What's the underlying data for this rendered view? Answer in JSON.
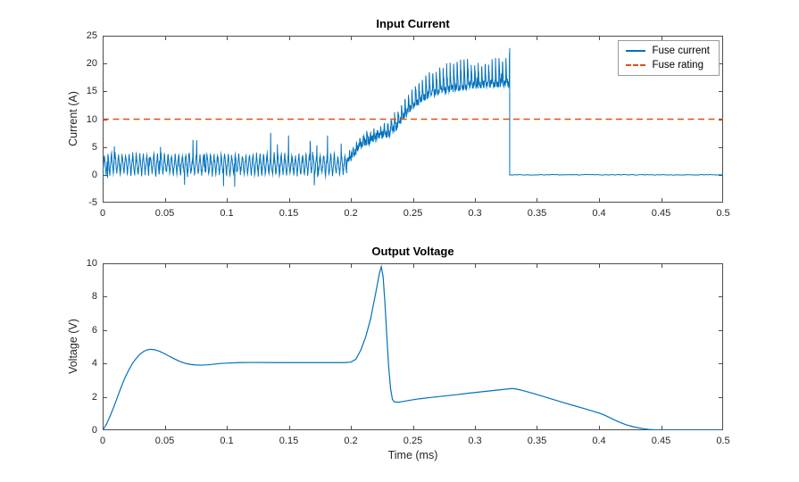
{
  "chart_data": [
    {
      "type": "line",
      "title": "Input Current",
      "xlabel": "",
      "ylabel": "Current (A)",
      "xlim": [
        0,
        0.5
      ],
      "ylim": [
        -5,
        25
      ],
      "xtick_values": [
        0,
        0.05,
        0.1,
        0.15,
        0.2,
        0.25,
        0.3,
        0.35,
        0.4,
        0.45,
        0.5
      ],
      "xtick_labels": [
        "0",
        "0.05",
        "0.1",
        "0.15",
        "0.2",
        "0.25",
        "0.3",
        "0.35",
        "0.4",
        "0.45",
        "0.5"
      ],
      "ytick_values": [
        -5,
        0,
        5,
        10,
        15,
        20,
        25
      ],
      "ytick_labels": [
        "-5",
        "0",
        "5",
        "10",
        "15",
        "20",
        "25"
      ],
      "grid": false,
      "axis_color": "#4d4d4d",
      "legend": {
        "position": "top-right",
        "entries": [
          "Fuse current",
          "Fuse rating"
        ]
      },
      "series": [
        {
          "name": "Fuse current",
          "color": "#0072BD",
          "line_style": "solid",
          "line_width": 1,
          "synthesis": {
            "seed": 7,
            "sample_dt": 0.0002,
            "switch_end": 0.197,
            "switch_period": 0.00285,
            "switch_low": 0.0,
            "switch_high": 3.7,
            "switch_noise": 0.9,
            "spike_up_prob": 0.02,
            "spike_up_max": 2.6,
            "spike_down_prob": 0.012,
            "spike_down_max": 1.8,
            "ramp_period": 0.0028,
            "ramp_noise": 1.4,
            "ramp_mean": [
              [
                0.197,
                3.0
              ],
              [
                0.202,
                4.5
              ],
              [
                0.207,
                6.0
              ],
              [
                0.212,
                6.6
              ],
              [
                0.217,
                7.2
              ],
              [
                0.222,
                7.8
              ],
              [
                0.23,
                8.2
              ],
              [
                0.237,
                9.5
              ],
              [
                0.243,
                11.5
              ],
              [
                0.25,
                13.2
              ],
              [
                0.258,
                14.6
              ],
              [
                0.266,
                15.4
              ],
              [
                0.275,
                16.0
              ],
              [
                0.285,
                16.5
              ],
              [
                0.295,
                16.8
              ],
              [
                0.305,
                17.0
              ],
              [
                0.315,
                17.2
              ],
              [
                0.328,
                17.4
              ]
            ],
            "ramp_amp": [
              [
                0.197,
                1.2
              ],
              [
                0.22,
                1.5
              ],
              [
                0.24,
                2.5
              ],
              [
                0.26,
                3.5
              ],
              [
                0.28,
                4.2
              ],
              [
                0.3,
                4.8
              ],
              [
                0.315,
                5.2
              ],
              [
                0.328,
                5.8
              ]
            ],
            "peak_before_drop": 22.8,
            "t_drop": 0.328,
            "after_level": 0.0,
            "after_noise": 0.12,
            "t_end": 0.5,
            "y_clamp": 23.5
          }
        },
        {
          "name": "Fuse rating",
          "color": "#D95319",
          "line_style": "dashed",
          "line_width": 1.5,
          "constant": 10
        }
      ]
    },
    {
      "type": "line",
      "title": "Output Voltage",
      "xlabel": "Time (ms)",
      "ylabel": "Voltage (V)",
      "xlim": [
        0,
        0.5
      ],
      "ylim": [
        0,
        10
      ],
      "xtick_values": [
        0,
        0.05,
        0.1,
        0.15,
        0.2,
        0.25,
        0.3,
        0.35,
        0.4,
        0.45,
        0.5
      ],
      "xtick_labels": [
        "0",
        "0.05",
        "0.1",
        "0.15",
        "0.2",
        "0.25",
        "0.3",
        "0.35",
        "0.4",
        "0.45",
        "0.5"
      ],
      "ytick_values": [
        0,
        2,
        4,
        6,
        8,
        10
      ],
      "ytick_labels": [
        "0",
        "2",
        "4",
        "6",
        "8",
        "10"
      ],
      "grid": false,
      "axis_color": "#4d4d4d",
      "legend": null,
      "series": [
        {
          "name": "Output voltage",
          "color": "#0072BD",
          "line_style": "solid",
          "line_width": 1.2,
          "points": [
            [
              0,
              0
            ],
            [
              0.003,
              0.35
            ],
            [
              0.006,
              0.85
            ],
            [
              0.009,
              1.4
            ],
            [
              0.012,
              2.0
            ],
            [
              0.015,
              2.6
            ],
            [
              0.018,
              3.15
            ],
            [
              0.021,
              3.6
            ],
            [
              0.024,
              4.0
            ],
            [
              0.027,
              4.3
            ],
            [
              0.03,
              4.55
            ],
            [
              0.033,
              4.72
            ],
            [
              0.036,
              4.82
            ],
            [
              0.039,
              4.85
            ],
            [
              0.042,
              4.82
            ],
            [
              0.046,
              4.72
            ],
            [
              0.05,
              4.58
            ],
            [
              0.054,
              4.42
            ],
            [
              0.058,
              4.27
            ],
            [
              0.062,
              4.13
            ],
            [
              0.066,
              4.02
            ],
            [
              0.07,
              3.95
            ],
            [
              0.075,
              3.91
            ],
            [
              0.08,
              3.9
            ],
            [
              0.085,
              3.92
            ],
            [
              0.09,
              3.96
            ],
            [
              0.095,
              4.0
            ],
            [
              0.1,
              4.02
            ],
            [
              0.11,
              4.05
            ],
            [
              0.12,
              4.06
            ],
            [
              0.14,
              4.05
            ],
            [
              0.16,
              4.05
            ],
            [
              0.18,
              4.05
            ],
            [
              0.195,
              4.05
            ],
            [
              0.2,
              4.08
            ],
            [
              0.204,
              4.25
            ],
            [
              0.208,
              4.8
            ],
            [
              0.212,
              5.6
            ],
            [
              0.216,
              6.7
            ],
            [
              0.22,
              8.2
            ],
            [
              0.223,
              9.4
            ],
            [
              0.2245,
              9.8
            ],
            [
              0.226,
              9.2
            ],
            [
              0.2275,
              7.6
            ],
            [
              0.229,
              5.6
            ],
            [
              0.2305,
              3.8
            ],
            [
              0.232,
              2.5
            ],
            [
              0.2335,
              1.85
            ],
            [
              0.235,
              1.7
            ],
            [
              0.238,
              1.68
            ],
            [
              0.242,
              1.72
            ],
            [
              0.248,
              1.8
            ],
            [
              0.255,
              1.88
            ],
            [
              0.265,
              1.97
            ],
            [
              0.275,
              2.05
            ],
            [
              0.285,
              2.13
            ],
            [
              0.295,
              2.22
            ],
            [
              0.305,
              2.3
            ],
            [
              0.315,
              2.38
            ],
            [
              0.325,
              2.46
            ],
            [
              0.33,
              2.5
            ],
            [
              0.334,
              2.46
            ],
            [
              0.34,
              2.35
            ],
            [
              0.348,
              2.18
            ],
            [
              0.356,
              2.0
            ],
            [
              0.364,
              1.82
            ],
            [
              0.372,
              1.64
            ],
            [
              0.38,
              1.47
            ],
            [
              0.388,
              1.3
            ],
            [
              0.396,
              1.12
            ],
            [
              0.4,
              1.03
            ],
            [
              0.404,
              0.92
            ],
            [
              0.408,
              0.78
            ],
            [
              0.412,
              0.63
            ],
            [
              0.416,
              0.5
            ],
            [
              0.42,
              0.38
            ],
            [
              0.424,
              0.28
            ],
            [
              0.428,
              0.2
            ],
            [
              0.432,
              0.14
            ],
            [
              0.436,
              0.09
            ],
            [
              0.44,
              0.05
            ],
            [
              0.444,
              0.03
            ],
            [
              0.448,
              0.01
            ],
            [
              0.452,
              0.0
            ],
            [
              0.46,
              0.0
            ],
            [
              0.48,
              0.0
            ],
            [
              0.5,
              0.0
            ]
          ]
        }
      ]
    }
  ]
}
